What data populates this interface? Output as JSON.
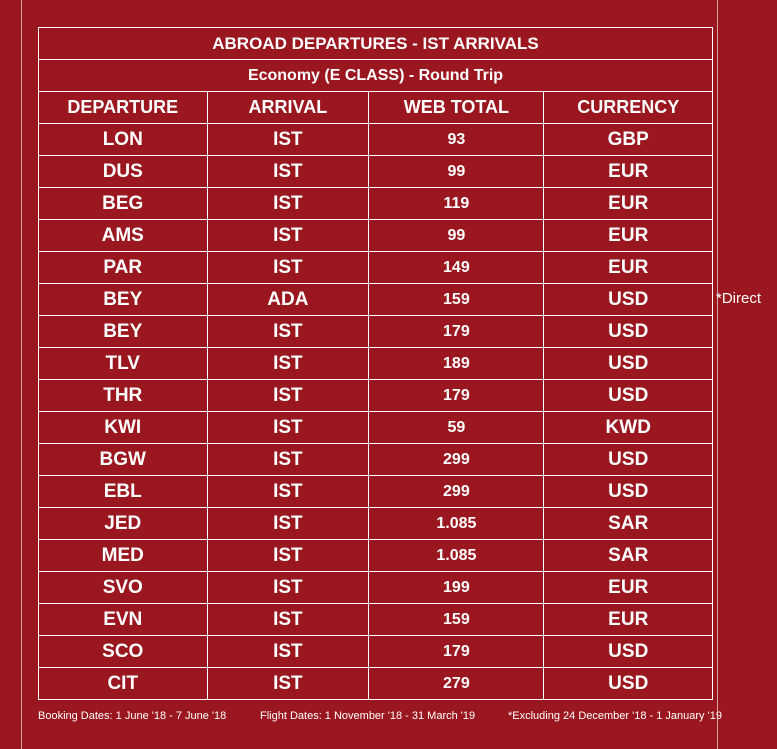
{
  "table": {
    "title": "ABROAD DEPARTURES - IST ARRIVALS",
    "subtitle": "Economy (E CLASS) - Round Trip",
    "headers": [
      "DEPARTURE",
      "ARRIVAL",
      "WEB TOTAL",
      "CURRENCY"
    ],
    "rows": [
      [
        "LON",
        "IST",
        "93",
        "GBP"
      ],
      [
        "DUS",
        "IST",
        "99",
        "EUR"
      ],
      [
        "BEG",
        "IST",
        "119",
        "EUR"
      ],
      [
        "AMS",
        "IST",
        "99",
        "EUR"
      ],
      [
        "PAR",
        "IST",
        "149",
        "EUR"
      ],
      [
        "BEY",
        "ADA",
        "159",
        "USD"
      ],
      [
        "BEY",
        "IST",
        "179",
        "USD"
      ],
      [
        "TLV",
        "IST",
        "189",
        "USD"
      ],
      [
        "THR",
        "IST",
        "179",
        "USD"
      ],
      [
        "KWI",
        "IST",
        "59",
        "KWD"
      ],
      [
        "BGW",
        "IST",
        "299",
        "USD"
      ],
      [
        "EBL",
        "IST",
        "299",
        "USD"
      ],
      [
        "JED",
        "IST",
        "1.085",
        "SAR"
      ],
      [
        "MED",
        "IST",
        "1.085",
        "SAR"
      ],
      [
        "SVO",
        "IST",
        "199",
        "EUR"
      ],
      [
        "EVN",
        "IST",
        "159",
        "EUR"
      ],
      [
        "SCO",
        "IST",
        "179",
        "USD"
      ],
      [
        "CIT",
        "IST",
        "279",
        "USD"
      ]
    ]
  },
  "notes": {
    "direct": "*Direct"
  },
  "footer": {
    "booking_dates": "Booking Dates: 1 June '18 - 7 June '18",
    "flight_dates": "Flight Dates: 1 November '18 - 31 March '19",
    "excluding": "*Excluding 24 December '18 - 1 January '19"
  },
  "colors": {
    "background": "#9a1720",
    "text": "#ffffff"
  }
}
